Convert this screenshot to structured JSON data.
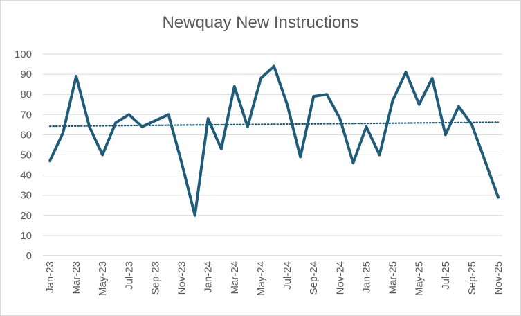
{
  "chart_data": {
    "type": "line",
    "title": "Newquay New Instructions",
    "xlabel": "",
    "ylabel": "",
    "ylim": [
      0,
      100
    ],
    "yticks": [
      0,
      10,
      20,
      30,
      40,
      50,
      60,
      70,
      80,
      90,
      100
    ],
    "x": [
      "Jan-23",
      "Feb-23",
      "Mar-23",
      "Apr-23",
      "May-23",
      "Jun-23",
      "Jul-23",
      "Aug-23",
      "Sep-23",
      "Oct-23",
      "Nov-23",
      "Dec-23",
      "Jan-24",
      "Feb-24",
      "Mar-24",
      "Apr-24",
      "May-24",
      "Jun-24",
      "Jul-24",
      "Aug-24",
      "Sep-24",
      "Oct-24",
      "Nov-24",
      "Dec-24",
      "Jan-25",
      "Feb-25",
      "Mar-25",
      "Apr-25",
      "May-25",
      "Jun-25",
      "Jul-25",
      "Aug-25",
      "Sep-25",
      "Oct-25",
      "Nov-25"
    ],
    "xtick_labels": [
      "Jan-23",
      "Mar-23",
      "May-23",
      "Jul-23",
      "Sep-23",
      "Nov-23",
      "Jan-24",
      "Mar-24",
      "May-24",
      "Jul-24",
      "Sep-24",
      "Nov-24",
      "Jan-25",
      "Mar-25",
      "May-25",
      "Jul-25",
      "Sep-25",
      "Nov-25"
    ],
    "series": [
      {
        "values": [
          47,
          61,
          89,
          64,
          50,
          66,
          70,
          64,
          67,
          70,
          46,
          20,
          68,
          53,
          84,
          64,
          88,
          94,
          75,
          49,
          79,
          80,
          68,
          46,
          64,
          50,
          77,
          91,
          75,
          88,
          60,
          74,
          65,
          47,
          29
        ],
        "color": "#1f5c7a"
      }
    ],
    "trendline": {
      "type": "linear",
      "style": "dotted",
      "start": 64.2,
      "end": 66.2,
      "color": "#1f5c7a"
    },
    "grid": true,
    "legend": "none"
  }
}
